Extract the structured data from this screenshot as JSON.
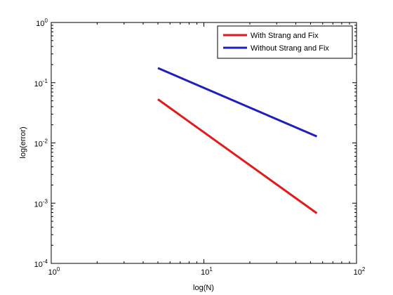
{
  "chart_data": {
    "type": "line",
    "xlabel": "log(N)",
    "ylabel": "log(error)",
    "xscale": "log",
    "yscale": "log",
    "xlim": [
      1,
      100
    ],
    "ylim": [
      0.0001,
      1
    ],
    "x_ticks": [
      {
        "value": 1,
        "base": "10",
        "exp": "0"
      },
      {
        "value": 10,
        "base": "10",
        "exp": "1"
      },
      {
        "value": 100,
        "base": "10",
        "exp": "2"
      }
    ],
    "y_ticks": [
      {
        "value": 0.0001,
        "base": "10",
        "exp": "-4"
      },
      {
        "value": 0.001,
        "base": "10",
        "exp": "-3"
      },
      {
        "value": 0.01,
        "base": "10",
        "exp": "-2"
      },
      {
        "value": 0.1,
        "base": "10",
        "exp": "-1"
      },
      {
        "value": 1,
        "base": "10",
        "exp": "0"
      }
    ],
    "grid": false,
    "legend_position": "top-right",
    "series": [
      {
        "name": "With Strang and Fix",
        "color": "#e31a1c",
        "x": [
          5,
          55
        ],
        "y": [
          0.053,
          0.00068
        ]
      },
      {
        "name": "Without Strang and Fix",
        "color": "#1f1fbf",
        "x": [
          5,
          55
        ],
        "y": [
          0.175,
          0.0128
        ]
      }
    ]
  }
}
